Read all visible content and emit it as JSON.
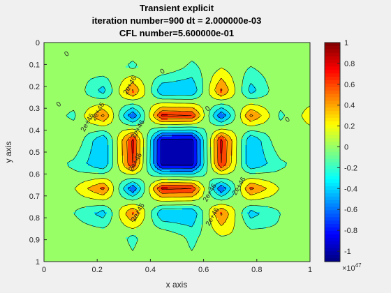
{
  "chart_data": {
    "type": "heatmap",
    "subtype": "filled-contour",
    "title": [
      "Transient explicit",
      "iteration number=900 dt = 2.000000e-03",
      "CFL number=5.600000e-01"
    ],
    "xlabel": "x axis",
    "ylabel": "y axis",
    "xlim": [
      0,
      1
    ],
    "ylim": [
      0,
      1
    ],
    "y_direction": "reversed",
    "x_ticks": [
      "0",
      "0.2",
      "0.4",
      "0.6",
      "0.8",
      "1"
    ],
    "y_ticks": [
      "0",
      "0.1",
      "0.2",
      "0.3",
      "0.4",
      "0.5",
      "0.6",
      "0.7",
      "0.8",
      "0.9",
      "1"
    ],
    "colormap": "jet",
    "colorbar": {
      "ticks": [
        "1",
        "0.8",
        "0.6",
        "0.4",
        "0.2",
        "0",
        "-0.2",
        "-0.4",
        "-0.6",
        "-0.8",
        "-1"
      ],
      "exponent_label": "×10",
      "exponent": "47",
      "range": [
        -1.1,
        1.0
      ]
    },
    "contour_labels": [
      "0",
      "0",
      "0",
      "0",
      "0",
      "2e+46",
      "2e+46",
      "2e+46",
      "2e+46",
      "2e+46",
      "2e+46",
      "2e+46",
      "2e+46",
      "2e+46"
    ],
    "grid_nodes": [
      0,
      0.1111,
      0.2222,
      0.3333,
      0.4444,
      0.5556,
      0.6667,
      0.7778,
      0.8889,
      1.0
    ],
    "field_values": [
      [
        0.0,
        0.05,
        -0.06,
        0.05,
        -0.06,
        0.05,
        -0.06,
        0.05,
        -0.06,
        0.05
      ],
      [
        0.0,
        -0.1,
        0.08,
        -0.15,
        0.1,
        -0.15,
        0.08,
        -0.1,
        0.05,
        0.0
      ],
      [
        -0.06,
        0.08,
        -0.4,
        0.55,
        -0.5,
        -0.5,
        0.55,
        -0.4,
        0.08,
        -0.05
      ],
      [
        0.05,
        -0.15,
        0.55,
        -0.7,
        0.75,
        0.7,
        -0.7,
        0.55,
        -0.15,
        0.2
      ],
      [
        -0.06,
        0.1,
        -0.5,
        0.75,
        -1.0,
        -1.0,
        0.75,
        -0.5,
        0.1,
        -0.05
      ],
      [
        0.05,
        -0.15,
        -0.5,
        0.7,
        -1.0,
        -1.0,
        0.7,
        -0.5,
        -0.15,
        0.05
      ],
      [
        -0.06,
        0.08,
        0.55,
        -0.7,
        0.75,
        0.7,
        -0.7,
        0.55,
        0.08,
        -0.05
      ],
      [
        0.05,
        -0.1,
        -0.4,
        0.55,
        -0.5,
        -0.5,
        0.55,
        -0.4,
        -0.1,
        0.05
      ],
      [
        -0.06,
        0.05,
        0.08,
        -0.15,
        0.1,
        -0.15,
        0.08,
        0.05,
        -0.06,
        0.05
      ],
      [
        0.0,
        -0.06,
        0.05,
        -0.06,
        0.05,
        -0.06,
        0.05,
        -0.06,
        0.05,
        0.0
      ]
    ]
  }
}
